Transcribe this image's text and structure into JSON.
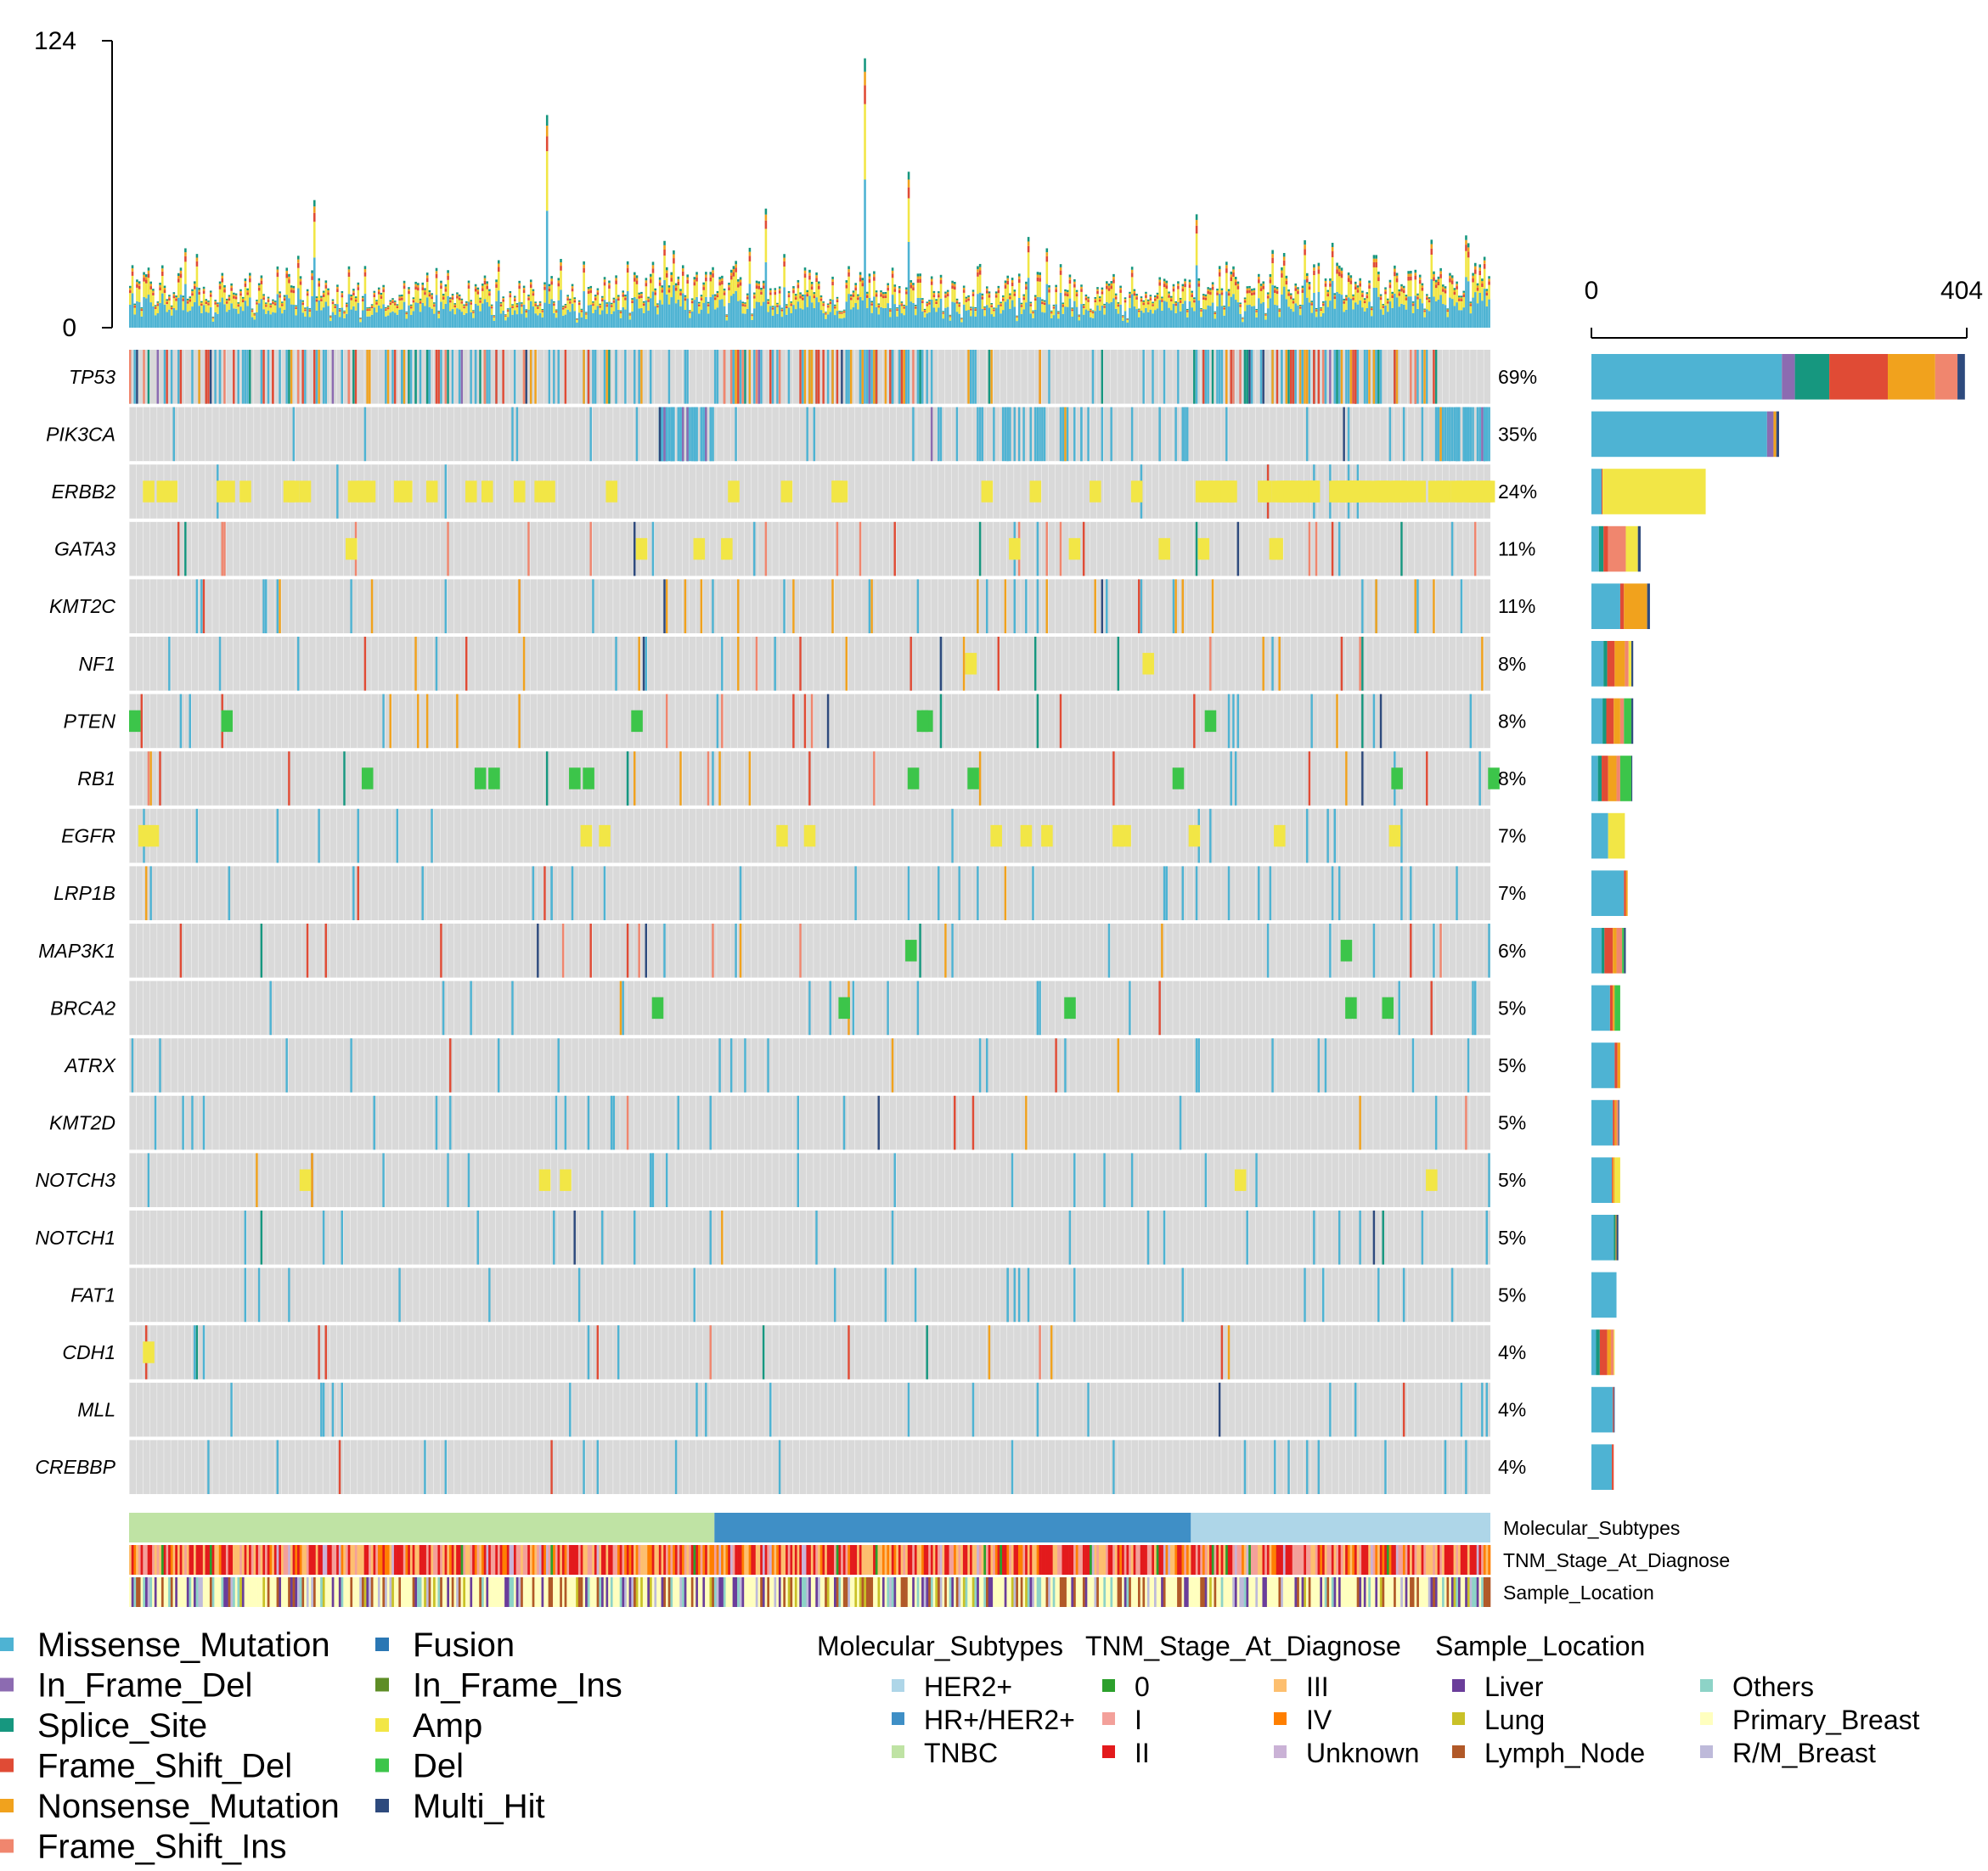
{
  "colors": {
    "Missense_Mutation": "#4eb3d3",
    "In_Frame_Del": "#8c6bb1",
    "Splice_Site": "#16977f",
    "Frame_Shift_Del": "#e04b35",
    "Nonsense_Mutation": "#f1a21d",
    "Frame_Shift_Ins": "#f0866e",
    "Fusion": "#2a77b4",
    "In_Frame_Ins": "#5e8d26",
    "Amp": "#f2e646",
    "Del": "#3cc54a",
    "Multi_Hit": "#2e4a7d",
    "HER2+": "#aed6e8",
    "HR+/HER2+": "#3f8fc6",
    "TNBC": "#bfe3a4",
    "0": "#2ca02c",
    "I": "#f3a09a",
    "II": "#e31a1c",
    "III": "#fdbf6f",
    "IV": "#ff7f00",
    "Unknown": "#cab2d6",
    "Liver": "#6a3d9a",
    "Lung": "#c9c127",
    "Lymph_Node": "#b15928",
    "Others": "#8dd3c7",
    "Primary_Breast": "#ffffbf",
    "R/M_Breast": "#bebada",
    "background": "#d9d9d9"
  },
  "chart_data": {
    "type": "heatmap",
    "title": "",
    "top_axis": {
      "min": 0,
      "max": 124,
      "tick_labels": [
        "0",
        "124"
      ]
    },
    "side_axis": {
      "min": 0,
      "max": 404,
      "tick_labels": [
        "0",
        "404"
      ]
    },
    "n_samples": 591,
    "genes": [
      {
        "name": "TP53",
        "pct": "69%",
        "breakdown": [
          {
            "type": "Missense_Mutation",
            "count": 205
          },
          {
            "type": "In_Frame_Del",
            "count": 14
          },
          {
            "type": "Splice_Site",
            "count": 37
          },
          {
            "type": "Frame_Shift_Del",
            "count": 63
          },
          {
            "type": "Nonsense_Mutation",
            "count": 51
          },
          {
            "type": "Frame_Shift_Ins",
            "count": 24
          },
          {
            "type": "Multi_Hit",
            "count": 8
          }
        ]
      },
      {
        "name": "PIK3CA",
        "pct": "35%",
        "breakdown": [
          {
            "type": "Missense_Mutation",
            "count": 189
          },
          {
            "type": "In_Frame_Del",
            "count": 7
          },
          {
            "type": "Nonsense_Mutation",
            "count": 3
          },
          {
            "type": "Multi_Hit",
            "count": 3
          }
        ]
      },
      {
        "name": "ERBB2",
        "pct": "24%",
        "breakdown": [
          {
            "type": "Missense_Mutation",
            "count": 11
          },
          {
            "type": "Frame_Shift_Del",
            "count": 1
          },
          {
            "type": "Amp",
            "count": 111
          }
        ]
      },
      {
        "name": "GATA3",
        "pct": "11%",
        "breakdown": [
          {
            "type": "Missense_Mutation",
            "count": 8
          },
          {
            "type": "Splice_Site",
            "count": 5
          },
          {
            "type": "Frame_Shift_Del",
            "count": 5
          },
          {
            "type": "Frame_Shift_Ins",
            "count": 19
          },
          {
            "type": "Amp",
            "count": 13
          },
          {
            "type": "Multi_Hit",
            "count": 3
          }
        ]
      },
      {
        "name": "KMT2C",
        "pct": "11%",
        "breakdown": [
          {
            "type": "Missense_Mutation",
            "count": 31
          },
          {
            "type": "Frame_Shift_Del",
            "count": 4
          },
          {
            "type": "Nonsense_Mutation",
            "count": 25
          },
          {
            "type": "Multi_Hit",
            "count": 3
          }
        ]
      },
      {
        "name": "NF1",
        "pct": "8%",
        "breakdown": [
          {
            "type": "Missense_Mutation",
            "count": 13
          },
          {
            "type": "Splice_Site",
            "count": 4
          },
          {
            "type": "Frame_Shift_Del",
            "count": 8
          },
          {
            "type": "Nonsense_Mutation",
            "count": 11
          },
          {
            "type": "Frame_Shift_Ins",
            "count": 4
          },
          {
            "type": "Amp",
            "count": 3
          },
          {
            "type": "Multi_Hit",
            "count": 2
          }
        ]
      },
      {
        "name": "PTEN",
        "pct": "8%",
        "breakdown": [
          {
            "type": "Missense_Mutation",
            "count": 12
          },
          {
            "type": "Splice_Site",
            "count": 4
          },
          {
            "type": "Frame_Shift_Del",
            "count": 8
          },
          {
            "type": "Nonsense_Mutation",
            "count": 7
          },
          {
            "type": "Frame_Shift_Ins",
            "count": 4
          },
          {
            "type": "Del",
            "count": 8
          },
          {
            "type": "Multi_Hit",
            "count": 2
          }
        ]
      },
      {
        "name": "RB1",
        "pct": "8%",
        "breakdown": [
          {
            "type": "Missense_Mutation",
            "count": 7
          },
          {
            "type": "Splice_Site",
            "count": 4
          },
          {
            "type": "Frame_Shift_Del",
            "count": 7
          },
          {
            "type": "Nonsense_Mutation",
            "count": 9
          },
          {
            "type": "Frame_Shift_Ins",
            "count": 4
          },
          {
            "type": "Del",
            "count": 12
          },
          {
            "type": "Multi_Hit",
            "count": 1
          }
        ]
      },
      {
        "name": "EGFR",
        "pct": "7%",
        "breakdown": [
          {
            "type": "Missense_Mutation",
            "count": 18
          },
          {
            "type": "Amp",
            "count": 18
          }
        ]
      },
      {
        "name": "LRP1B",
        "pct": "7%",
        "breakdown": [
          {
            "type": "Missense_Mutation",
            "count": 35
          },
          {
            "type": "Frame_Shift_Del",
            "count": 2
          },
          {
            "type": "Nonsense_Mutation",
            "count": 2
          }
        ]
      },
      {
        "name": "MAP3K1",
        "pct": "6%",
        "breakdown": [
          {
            "type": "Missense_Mutation",
            "count": 11
          },
          {
            "type": "Splice_Site",
            "count": 3
          },
          {
            "type": "Frame_Shift_Del",
            "count": 9
          },
          {
            "type": "Nonsense_Mutation",
            "count": 4
          },
          {
            "type": "Frame_Shift_Ins",
            "count": 6
          },
          {
            "type": "Del",
            "count": 2
          },
          {
            "type": "Multi_Hit",
            "count": 2
          }
        ]
      },
      {
        "name": "BRCA2",
        "pct": "5%",
        "breakdown": [
          {
            "type": "Missense_Mutation",
            "count": 20
          },
          {
            "type": "Frame_Shift_Del",
            "count": 3
          },
          {
            "type": "Nonsense_Mutation",
            "count": 2
          },
          {
            "type": "Del",
            "count": 6
          }
        ]
      },
      {
        "name": "ATRX",
        "pct": "5%",
        "breakdown": [
          {
            "type": "Missense_Mutation",
            "count": 25
          },
          {
            "type": "Frame_Shift_Del",
            "count": 3
          },
          {
            "type": "Nonsense_Mutation",
            "count": 3
          }
        ]
      },
      {
        "name": "KMT2D",
        "pct": "5%",
        "breakdown": [
          {
            "type": "Missense_Mutation",
            "count": 23
          },
          {
            "type": "Frame_Shift_Del",
            "count": 2
          },
          {
            "type": "Nonsense_Mutation",
            "count": 2
          },
          {
            "type": "Frame_Shift_Ins",
            "count": 2
          },
          {
            "type": "Multi_Hit",
            "count": 1
          }
        ]
      },
      {
        "name": "NOTCH3",
        "pct": "5%",
        "breakdown": [
          {
            "type": "Missense_Mutation",
            "count": 22
          },
          {
            "type": "Frame_Shift_Del",
            "count": 1
          },
          {
            "type": "Nonsense_Mutation",
            "count": 2
          },
          {
            "type": "Amp",
            "count": 6
          }
        ]
      },
      {
        "name": "NOTCH1",
        "pct": "5%",
        "breakdown": [
          {
            "type": "Missense_Mutation",
            "count": 24
          },
          {
            "type": "Splice_Site",
            "count": 2
          },
          {
            "type": "Nonsense_Mutation",
            "count": 1
          },
          {
            "type": "Multi_Hit",
            "count": 2
          }
        ]
      },
      {
        "name": "FAT1",
        "pct": "5%",
        "breakdown": [
          {
            "type": "Missense_Mutation",
            "count": 27
          }
        ]
      },
      {
        "name": "CDH1",
        "pct": "4%",
        "breakdown": [
          {
            "type": "Missense_Mutation",
            "count": 5
          },
          {
            "type": "Splice_Site",
            "count": 4
          },
          {
            "type": "Frame_Shift_Del",
            "count": 8
          },
          {
            "type": "Nonsense_Mutation",
            "count": 4
          },
          {
            "type": "Frame_Shift_Ins",
            "count": 3
          },
          {
            "type": "Amp",
            "count": 1
          }
        ]
      },
      {
        "name": "MLL",
        "pct": "4%",
        "breakdown": [
          {
            "type": "Missense_Mutation",
            "count": 23
          },
          {
            "type": "Frame_Shift_Del",
            "count": 1
          },
          {
            "type": "Multi_Hit",
            "count": 1
          }
        ]
      },
      {
        "name": "CREBBP",
        "pct": "4%",
        "breakdown": [
          {
            "type": "Missense_Mutation",
            "count": 22
          },
          {
            "type": "Frame_Shift_Del",
            "count": 2
          }
        ]
      }
    ],
    "annotations": [
      {
        "name": "Molecular_Subtypes",
        "segments": [
          {
            "category": "TNBC",
            "fraction": 0.43
          },
          {
            "category": "HR+/HER2+",
            "fraction": 0.35
          },
          {
            "category": "HER2+",
            "fraction": 0.22
          }
        ]
      },
      {
        "name": "TNM_Stage_At_Diagnose",
        "mix": [
          {
            "category": "II",
            "weight": 0.34
          },
          {
            "category": "I",
            "weight": 0.2
          },
          {
            "category": "III",
            "weight": 0.28
          },
          {
            "category": "IV",
            "weight": 0.1
          },
          {
            "category": "0",
            "weight": 0.02
          },
          {
            "category": "Unknown",
            "weight": 0.06
          }
        ]
      },
      {
        "name": "Sample_Location",
        "mix": [
          {
            "category": "Primary_Breast",
            "weight": 0.5
          },
          {
            "category": "Lymph_Node",
            "weight": 0.14
          },
          {
            "category": "Liver",
            "weight": 0.12
          },
          {
            "category": "Lung",
            "weight": 0.06
          },
          {
            "category": "Others",
            "weight": 0.1
          },
          {
            "category": "R/M_Breast",
            "weight": 0.08
          }
        ]
      }
    ]
  },
  "legend": {
    "mutation_col1": [
      "Missense_Mutation",
      "In_Frame_Del",
      "Splice_Site",
      "Frame_Shift_Del",
      "Nonsense_Mutation",
      "Frame_Shift_Ins"
    ],
    "mutation_col2": [
      "Fusion",
      "In_Frame_Ins",
      "Amp",
      "Del",
      "Multi_Hit"
    ],
    "annotation_groups": [
      {
        "title": "Molecular_Subtypes",
        "items": [
          "HER2+",
          "HR+/HER2+",
          "TNBC"
        ]
      },
      {
        "title": "TNM_Stage_At_Diagnose",
        "items": [
          "0",
          "I",
          "II"
        ]
      },
      {
        "title": "",
        "items": [
          "III",
          "IV",
          "Unknown"
        ]
      },
      {
        "title": "Sample_Location",
        "items": [
          "Liver",
          "Lung",
          "Lymph_Node"
        ]
      },
      {
        "title": "",
        "items": [
          "Others",
          "Primary_Breast",
          "R/M_Breast"
        ]
      }
    ]
  }
}
